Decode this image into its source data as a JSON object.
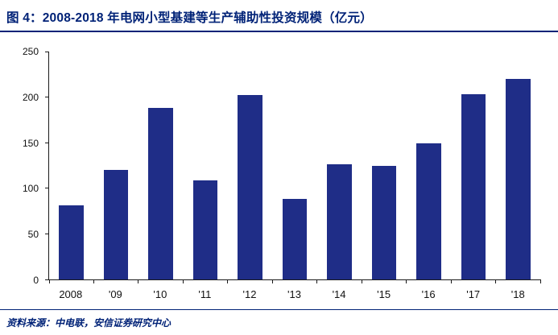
{
  "header": {
    "title": "图 4：2008-2018 年电网小型基建等生产辅助性投资规模（亿元）"
  },
  "footer": {
    "source": "资料来源：中电联，安信证券研究中心"
  },
  "colors": {
    "navy": "#002277",
    "bar": "#1f2d87",
    "axis": "#1a1a1a",
    "text": "#111111"
  },
  "chart_data": {
    "type": "bar",
    "title": "2008-2018 年电网小型基建等生产辅助性投资规模（亿元）",
    "categories": [
      "2008",
      "'09",
      "'10",
      "'11",
      "'12",
      "'13",
      "'14",
      "'15",
      "'16",
      "'17",
      "'18"
    ],
    "values": [
      81,
      120,
      188,
      109,
      202,
      88,
      126,
      125,
      149,
      203,
      220
    ],
    "xlabel": "",
    "ylabel": "",
    "ylim": [
      0,
      250
    ],
    "ytick_step": 50,
    "yticks": [
      0,
      50,
      100,
      150,
      200,
      250
    ],
    "grid": false,
    "legend": false,
    "bar_color": "#1f2d87"
  }
}
